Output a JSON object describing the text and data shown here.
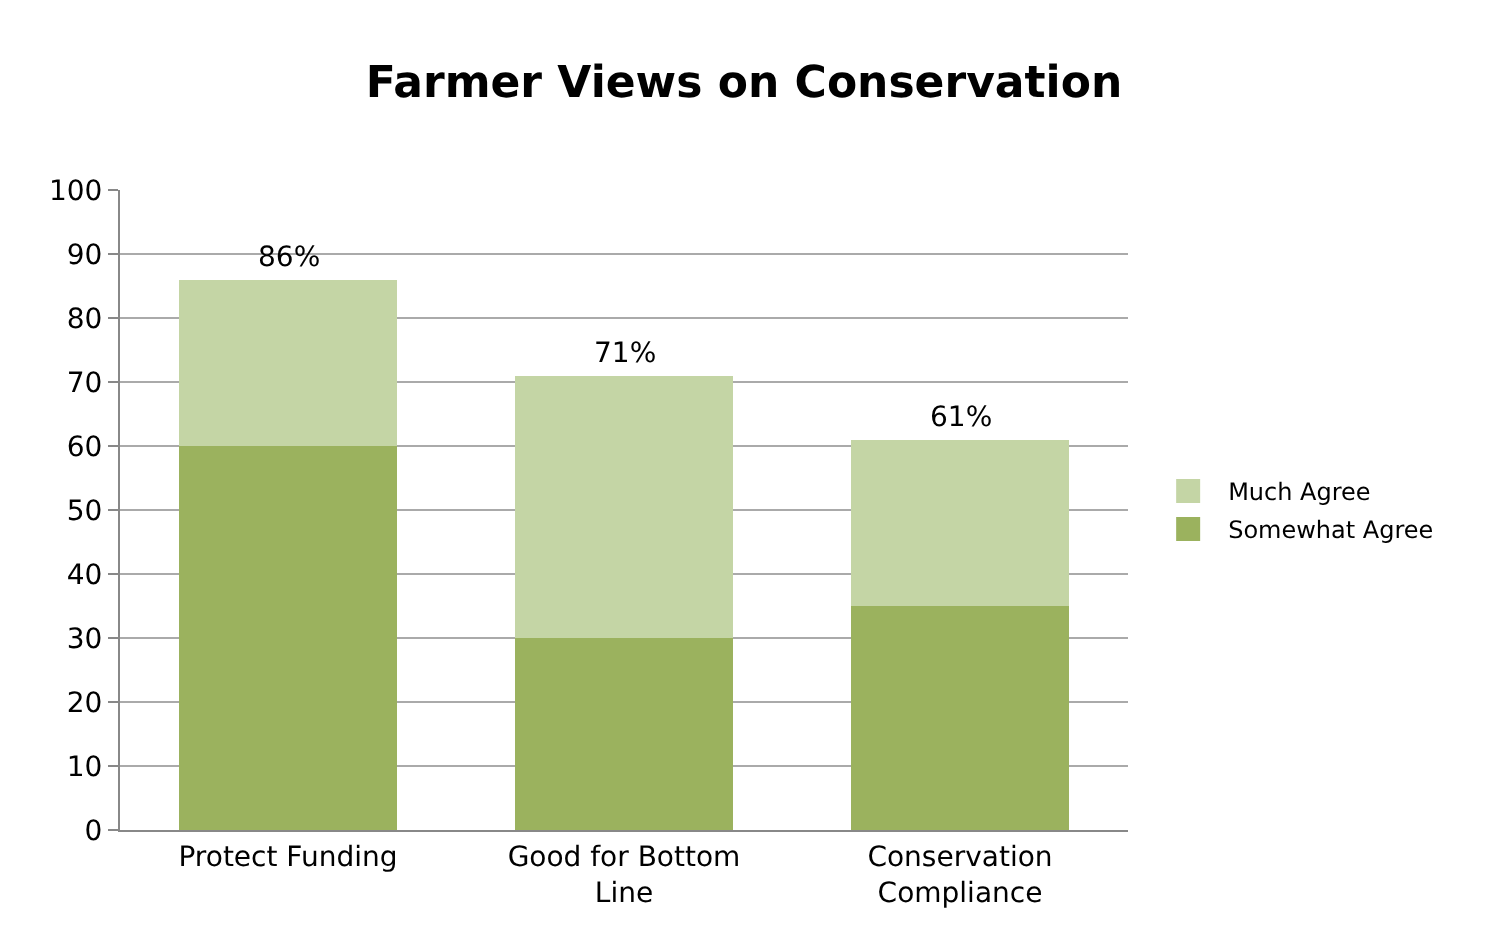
{
  "chart_data": {
    "type": "bar",
    "title": "Farmer Views on Conservation",
    "categories": [
      "Protect Funding",
      "Good for Bottom Line",
      "Conservation Compliance"
    ],
    "stacked": true,
    "series": [
      {
        "name": "Somewhat Agree",
        "color": "#9bb25e",
        "values": [
          60,
          30,
          35
        ]
      },
      {
        "name": "Much Agree",
        "color": "#c4d5a5",
        "values": [
          26,
          41,
          26
        ]
      }
    ],
    "totals": [
      "86%",
      "71%",
      "61%"
    ],
    "ylim": [
      0,
      100
    ],
    "yticks": [
      0,
      10,
      20,
      30,
      40,
      50,
      60,
      70,
      80,
      90,
      100
    ],
    "grid": "y",
    "legend": "right"
  }
}
